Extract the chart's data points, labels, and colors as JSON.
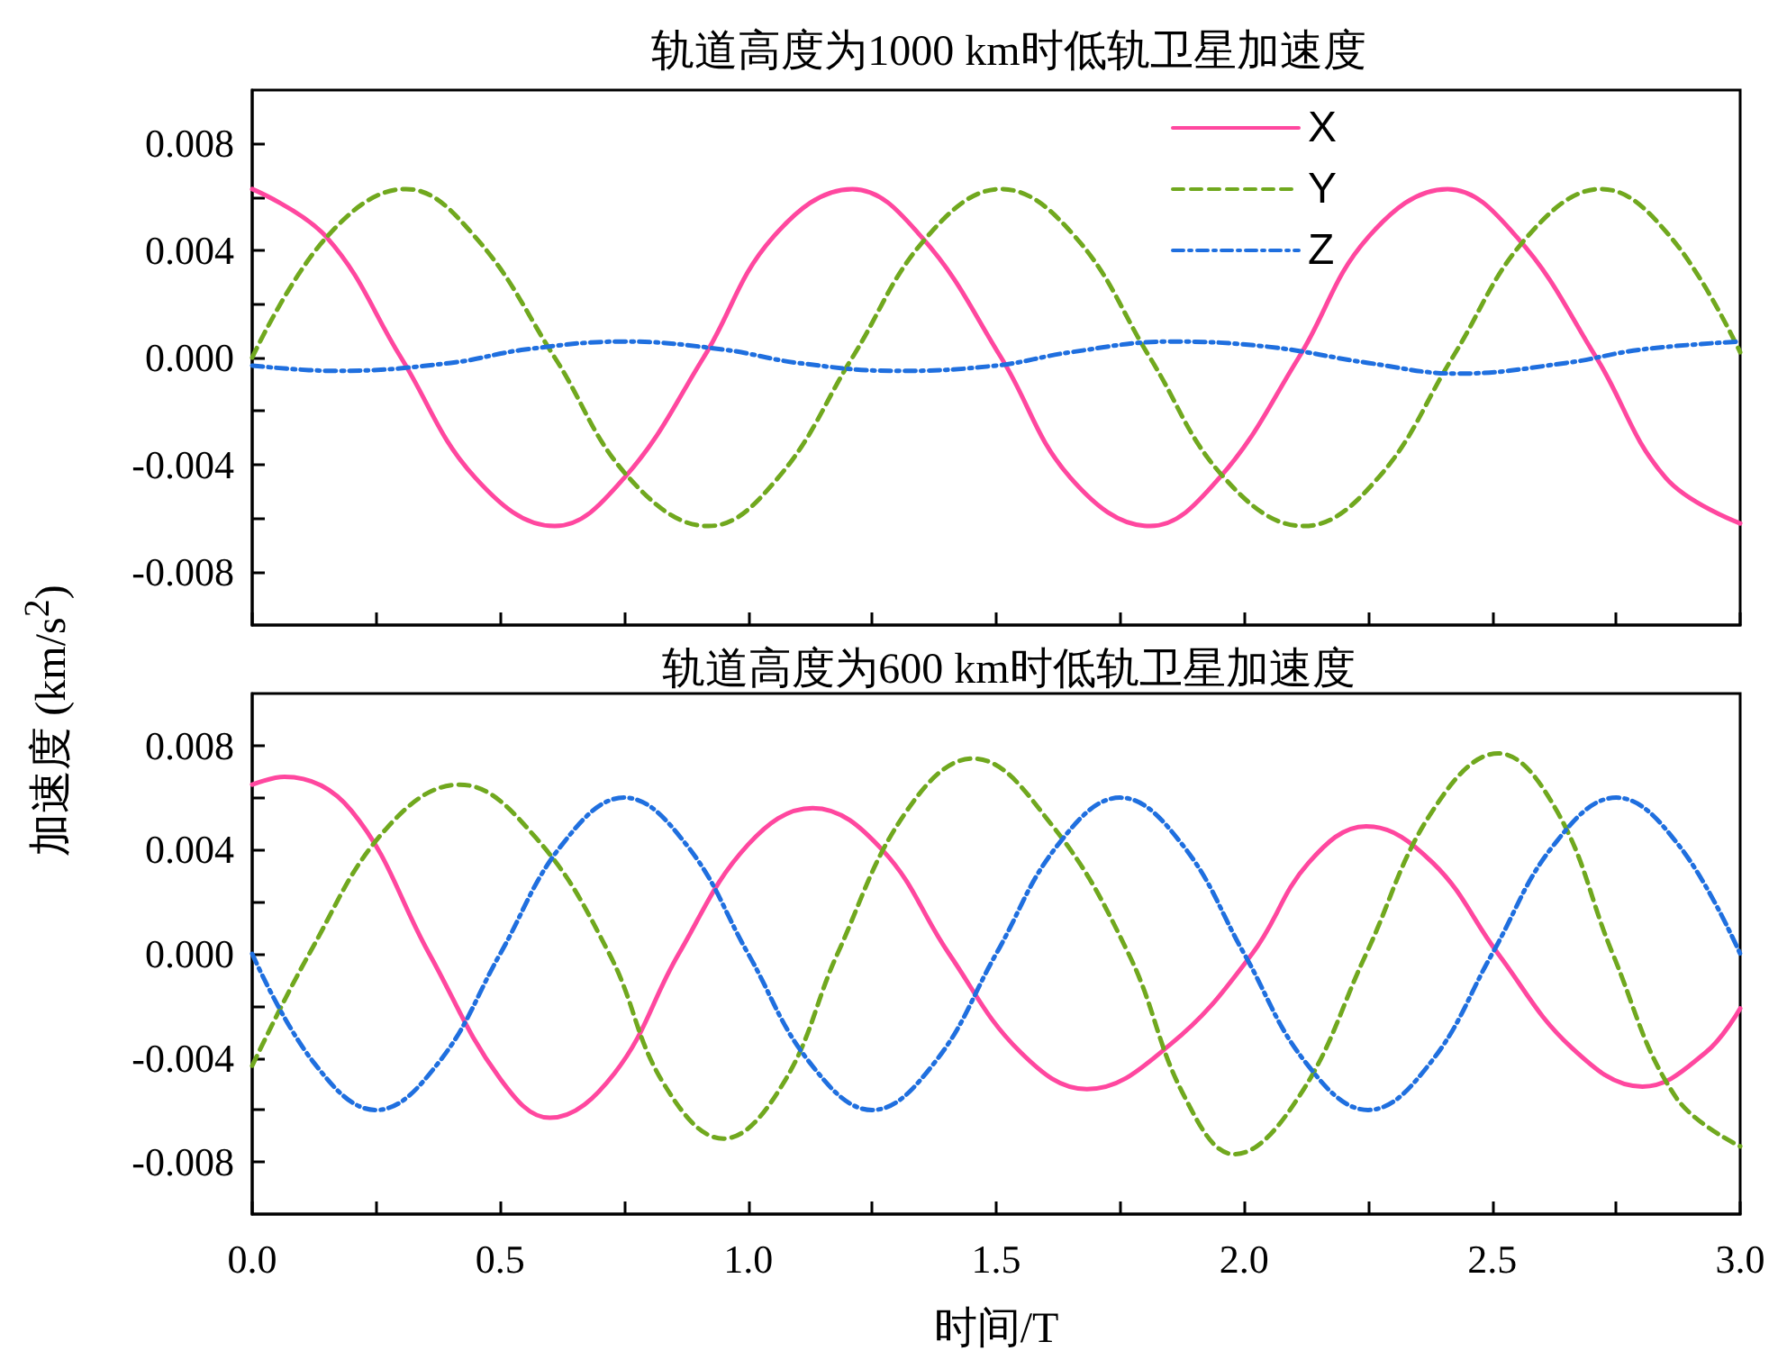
{
  "chart_data": [
    {
      "type": "line",
      "title": "轨道高度为1000 km时低轨卫星加速度",
      "xlim": [
        0,
        3
      ],
      "xticks": [
        {
          "value": 0,
          "label": null
        },
        {
          "value": 0.25,
          "label": null
        },
        {
          "value": 0.5,
          "label": null
        },
        {
          "value": 0.75,
          "label": null
        },
        {
          "value": 1,
          "label": null
        },
        {
          "value": 1.25,
          "label": null
        },
        {
          "value": 1.5,
          "label": null
        },
        {
          "value": 1.75,
          "label": null
        },
        {
          "value": 2,
          "label": null
        },
        {
          "value": 2.25,
          "label": null
        },
        {
          "value": 2.5,
          "label": null
        },
        {
          "value": 2.75,
          "label": null
        },
        {
          "value": 3,
          "label": null
        }
      ],
      "ylim": [
        -0.01,
        0.01
      ],
      "yticks": [
        -0.008,
        {
          "value": -0.006,
          "label": null
        },
        -0.004,
        {
          "value": -0.002,
          "label": null
        },
        {
          "value": 0,
          "label": "0.000"
        },
        {
          "value": 0.002,
          "label": null
        },
        0.004,
        {
          "value": 0.006,
          "label": null
        },
        0.008
      ],
      "tick_labels": "y",
      "legend": "top right",
      "marker": "none",
      "series": [
        {
          "name": "X",
          "color": "#ff479f",
          "line_style": "solid",
          "x": [
            0,
            0.15,
            0.3,
            0.45,
            0.61,
            0.75,
            0.91,
            1.05,
            1.21,
            1.35,
            1.51,
            1.65,
            1.81,
            1.95,
            2.11,
            2.25,
            2.41,
            2.55,
            2.71,
            2.85,
            3.0
          ],
          "values": [
            0.0063,
            0.0045,
            0.0,
            -0.0045,
            -0.0063,
            -0.0045,
            0.0,
            0.0045,
            0.0063,
            0.0045,
            0.0,
            -0.0045,
            -0.0063,
            -0.0045,
            0.0,
            0.0045,
            0.0063,
            0.0045,
            0.0,
            -0.0045,
            -0.0062
          ]
        },
        {
          "name": "Y",
          "color": "#70a81e",
          "line_style": "dashed",
          "x": [
            0,
            0.15,
            0.31,
            0.45,
            0.61,
            0.76,
            0.92,
            1.06,
            1.21,
            1.36,
            1.51,
            1.66,
            1.81,
            1.96,
            2.12,
            2.27,
            2.42,
            2.57,
            2.72,
            2.86,
            3.0
          ],
          "values": [
            0.0,
            0.0045,
            0.0063,
            0.0045,
            0.0,
            -0.0045,
            -0.0063,
            -0.0045,
            0.0,
            0.0045,
            0.0063,
            0.0045,
            0.0,
            -0.0045,
            -0.0063,
            -0.0045,
            0.0,
            0.0045,
            0.0063,
            0.0045,
            0.0002
          ]
        },
        {
          "name": "Z",
          "color": "#1f6fdf",
          "line_style": "dotted",
          "x": [
            0,
            0.17,
            0.4,
            0.55,
            0.75,
            0.95,
            1.1,
            1.3,
            1.5,
            1.65,
            1.85,
            2.05,
            2.25,
            2.43,
            2.65,
            2.8,
            3.0
          ],
          "values": [
            -0.0003,
            -0.0005,
            -0.0002,
            0.0003,
            0.0006,
            0.0003,
            -0.0002,
            -0.0005,
            -0.0003,
            0.0002,
            0.0006,
            0.0004,
            -0.0002,
            -0.0006,
            -0.0002,
            0.0003,
            0.0006
          ]
        }
      ]
    },
    {
      "type": "line",
      "title": "轨道高度为600 km时低轨卫星加速度",
      "xlabel": "时间/T",
      "ylabel": "加速度 (km/s$^{2}$)",
      "xlim": [
        0,
        3
      ],
      "xticks": [
        {
          "value": 0,
          "label": "0.0"
        },
        {
          "value": 0.25,
          "label": null
        },
        {
          "value": 0.5,
          "label": "0.5"
        },
        {
          "value": 0.75,
          "label": null
        },
        {
          "value": 1,
          "label": "1.0"
        },
        {
          "value": 1.25,
          "label": null
        },
        {
          "value": 1.5,
          "label": "1.5"
        },
        {
          "value": 1.75,
          "label": null
        },
        {
          "value": 2,
          "label": "2.0"
        },
        {
          "value": 2.25,
          "label": null
        },
        {
          "value": 2.5,
          "label": "2.5"
        },
        {
          "value": 2.75,
          "label": null
        },
        {
          "value": 3,
          "label": "3.0"
        }
      ],
      "ylim": [
        -0.01,
        0.01
      ],
      "yticks": [
        -0.008,
        {
          "value": -0.006,
          "label": null
        },
        -0.004,
        {
          "value": -0.002,
          "label": null
        },
        {
          "value": 0,
          "label": "0.000"
        },
        {
          "value": 0.002,
          "label": null
        },
        0.004,
        {
          "value": 0.006,
          "label": null
        },
        0.008
      ],
      "marker": "none",
      "series": [
        {
          "color": "#ff479f",
          "line_style": "solid",
          "x": [
            0,
            0.065,
            0.2,
            0.357,
            0.5,
            0.6,
            0.73,
            0.86,
            1.0,
            1.13,
            1.27,
            1.405,
            1.55,
            1.683,
            1.85,
            2.016,
            2.13,
            2.246,
            2.38,
            2.512,
            2.66,
            2.803,
            2.93,
            3.0
          ],
          "values": [
            0.0065,
            0.0068,
            0.0055,
            0.0,
            -0.0048,
            -0.0063,
            -0.0046,
            0.0,
            0.0042,
            0.0056,
            0.004,
            0.0,
            -0.0038,
            -0.0052,
            -0.0035,
            0.0,
            0.0035,
            0.0049,
            0.0035,
            0.0,
            -0.0036,
            -0.0051,
            -0.0038,
            -0.0021
          ]
        },
        {
          "color": "#70a81e",
          "line_style": "dashed",
          "x": [
            0,
            0.115,
            0.27,
            0.418,
            0.57,
            0.72,
            0.83,
            0.95,
            1.07,
            1.18,
            1.32,
            1.453,
            1.61,
            1.767,
            1.88,
            1.98,
            2.11,
            2.246,
            2.38,
            2.512,
            2.63,
            2.743,
            2.87,
            3.0
          ],
          "values": [
            -0.0043,
            0.0,
            0.0048,
            0.0065,
            0.0045,
            0.0,
            -0.005,
            -0.0071,
            -0.005,
            0.0,
            0.0055,
            0.0075,
            0.005,
            0.0,
            -0.0055,
            -0.0077,
            -0.0055,
            0.0,
            0.0055,
            0.0077,
            0.0055,
            0.0,
            -0.0055,
            -0.0074
          ]
        },
        {
          "color": "#1f6fdf",
          "line_style": "dotted",
          "x": [
            0,
            0.125,
            0.25,
            0.375,
            0.5,
            0.625,
            0.75,
            0.875,
            1.0,
            1.125,
            1.25,
            1.375,
            1.5,
            1.625,
            1.75,
            1.875,
            2.0,
            2.125,
            2.25,
            2.375,
            2.5,
            2.625,
            2.75,
            2.875,
            3.0
          ],
          "values": [
            0.0,
            -0.0042,
            -0.006,
            -0.0042,
            0.0,
            0.0042,
            0.006,
            0.0042,
            0.0,
            -0.0042,
            -0.006,
            -0.0042,
            0.0,
            0.0042,
            0.006,
            0.0042,
            0.0,
            -0.0042,
            -0.006,
            -0.0042,
            0.0,
            0.0042,
            0.006,
            0.0042,
            0.0
          ]
        }
      ]
    }
  ]
}
